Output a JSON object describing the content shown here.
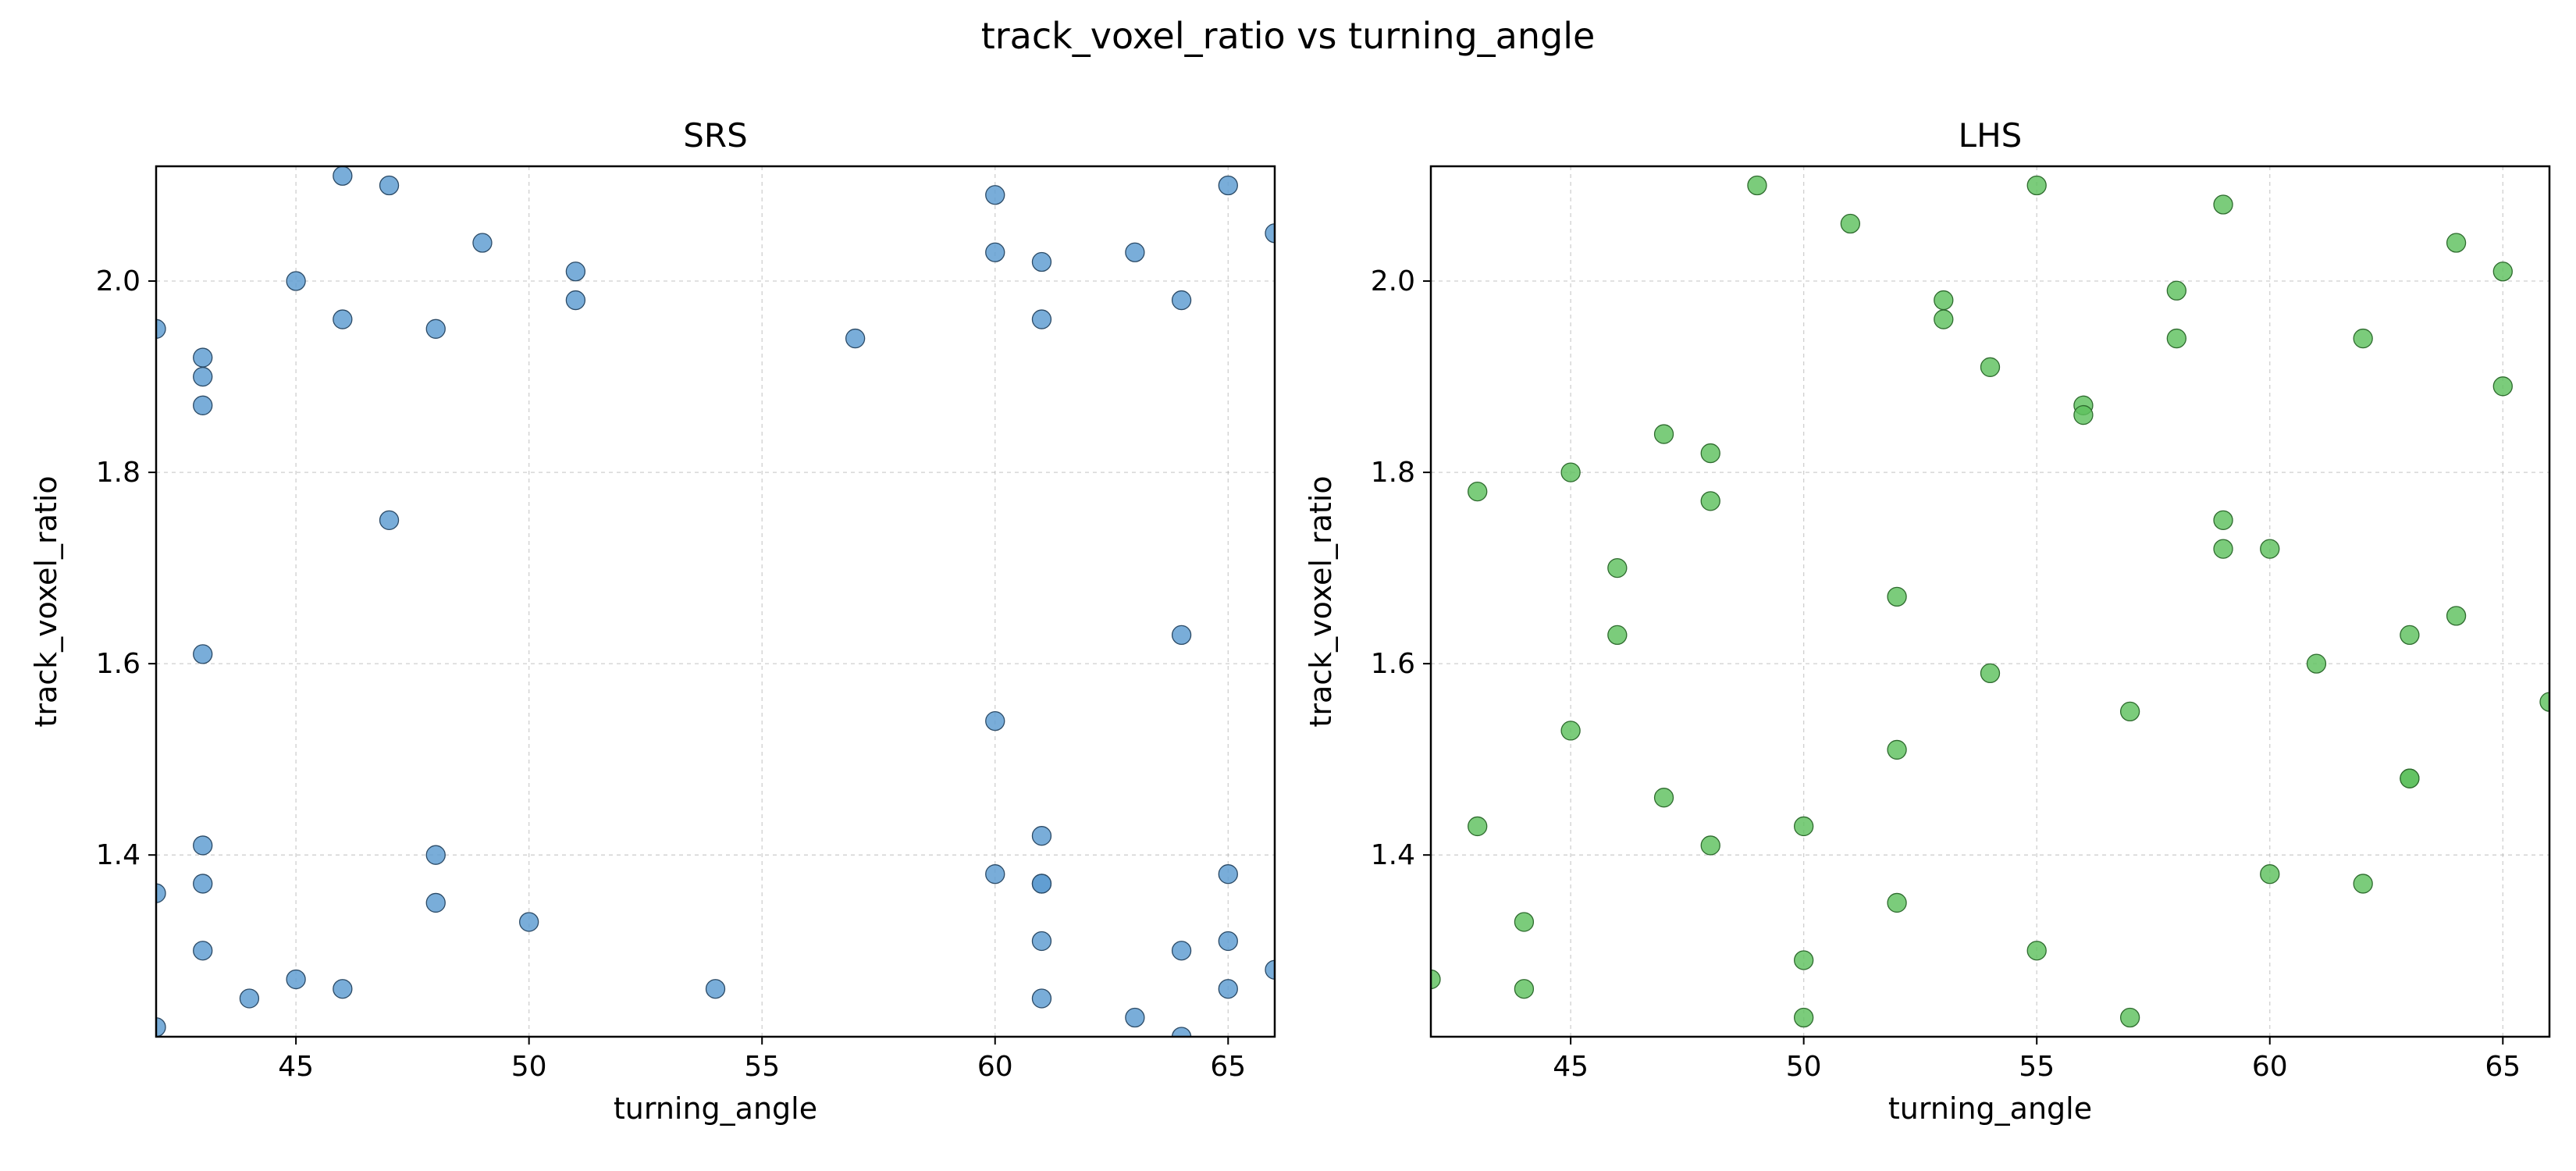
{
  "figure": {
    "suptitle": "track_voxel_ratio vs turning_angle"
  },
  "colors": {
    "srs_marker": "#5b9bd1",
    "lhs_marker": "#5ec15e",
    "srs_edge": "#2b4a66",
    "lhs_edge": "#2e6b2e"
  },
  "chart_data": [
    {
      "type": "scatter",
      "title": "SRS",
      "xlabel": "turning_angle",
      "ylabel": "track_voxel_ratio",
      "xlim": [
        42,
        66
      ],
      "ylim": [
        1.21,
        2.12
      ],
      "xticks": [
        45,
        50,
        55,
        60,
        65
      ],
      "yticks": [
        1.4,
        1.6,
        1.8,
        2.0
      ],
      "xtick_labels": [
        "45",
        "50",
        "55",
        "60",
        "65"
      ],
      "ytick_labels": [
        "1.4",
        "1.6",
        "1.8",
        "2.0"
      ],
      "grid": true,
      "marker_color_key": "srs_marker",
      "edge_color_key": "srs_edge",
      "points": [
        [
          46,
          2.11
        ],
        [
          47,
          2.1
        ],
        [
          49,
          2.04
        ],
        [
          45,
          2.0
        ],
        [
          46,
          1.96
        ],
        [
          48,
          1.95
        ],
        [
          51,
          2.01
        ],
        [
          51,
          1.98
        ],
        [
          42,
          1.95
        ],
        [
          43,
          1.92
        ],
        [
          43,
          1.9
        ],
        [
          43,
          1.87
        ],
        [
          47,
          1.75
        ],
        [
          43,
          1.61
        ],
        [
          57,
          1.94
        ],
        [
          60,
          2.09
        ],
        [
          60,
          2.03
        ],
        [
          61,
          2.02
        ],
        [
          61,
          1.96
        ],
        [
          63,
          2.03
        ],
        [
          64,
          1.98
        ],
        [
          65,
          2.1
        ],
        [
          66,
          2.05
        ],
        [
          64,
          1.63
        ],
        [
          60,
          1.54
        ],
        [
          43,
          1.41
        ],
        [
          43,
          1.37
        ],
        [
          48,
          1.4
        ],
        [
          48,
          1.35
        ],
        [
          50,
          1.33
        ],
        [
          43,
          1.3
        ],
        [
          45,
          1.27
        ],
        [
          46,
          1.26
        ],
        [
          44,
          1.25
        ],
        [
          54,
          1.26
        ],
        [
          42,
          1.36
        ],
        [
          42,
          1.22
        ],
        [
          60,
          1.38
        ],
        [
          61,
          1.42
        ],
        [
          61,
          1.37
        ],
        [
          61,
          1.37
        ],
        [
          61,
          1.31
        ],
        [
          61,
          1.25
        ],
        [
          63,
          1.23
        ],
        [
          64,
          1.3
        ],
        [
          64,
          1.21
        ],
        [
          65,
          1.38
        ],
        [
          65,
          1.31
        ],
        [
          65,
          1.26
        ],
        [
          66,
          1.28
        ]
      ]
    },
    {
      "type": "scatter",
      "title": "LHS",
      "xlabel": "turning_angle",
      "ylabel": "track_voxel_ratio",
      "xlim": [
        42,
        66
      ],
      "ylim": [
        1.21,
        2.12
      ],
      "xticks": [
        45,
        50,
        55,
        60,
        65
      ],
      "yticks": [
        1.4,
        1.6,
        1.8,
        2.0
      ],
      "xtick_labels": [
        "45",
        "50",
        "55",
        "60",
        "65"
      ],
      "ytick_labels": [
        "1.4",
        "1.6",
        "1.8",
        "2.0"
      ],
      "grid": true,
      "marker_color_key": "lhs_marker",
      "edge_color_key": "lhs_edge",
      "points": [
        [
          49,
          2.1
        ],
        [
          51,
          2.06
        ],
        [
          55,
          2.1
        ],
        [
          59,
          2.08
        ],
        [
          53,
          1.98
        ],
        [
          53,
          1.96
        ],
        [
          54,
          1.91
        ],
        [
          58,
          1.99
        ],
        [
          58,
          1.94
        ],
        [
          62,
          1.94
        ],
        [
          64,
          2.04
        ],
        [
          65,
          2.01
        ],
        [
          65,
          1.89
        ],
        [
          56,
          1.87
        ],
        [
          56,
          1.86
        ],
        [
          43,
          1.78
        ],
        [
          45,
          1.8
        ],
        [
          47,
          1.84
        ],
        [
          48,
          1.82
        ],
        [
          48,
          1.77
        ],
        [
          46,
          1.7
        ],
        [
          46,
          1.63
        ],
        [
          52,
          1.67
        ],
        [
          59,
          1.75
        ],
        [
          59,
          1.72
        ],
        [
          60,
          1.72
        ],
        [
          54,
          1.59
        ],
        [
          61,
          1.6
        ],
        [
          63,
          1.63
        ],
        [
          64,
          1.65
        ],
        [
          66,
          1.56
        ],
        [
          45,
          1.53
        ],
        [
          47,
          1.46
        ],
        [
          52,
          1.51
        ],
        [
          57,
          1.55
        ],
        [
          43,
          1.43
        ],
        [
          48,
          1.41
        ],
        [
          50,
          1.43
        ],
        [
          52,
          1.35
        ],
        [
          60,
          1.38
        ],
        [
          62,
          1.37
        ],
        [
          63,
          1.48
        ],
        [
          63,
          1.48
        ],
        [
          44,
          1.33
        ],
        [
          42,
          1.27
        ],
        [
          44,
          1.26
        ],
        [
          50,
          1.29
        ],
        [
          55,
          1.3
        ],
        [
          50,
          1.23
        ],
        [
          57,
          1.23
        ]
      ]
    }
  ]
}
